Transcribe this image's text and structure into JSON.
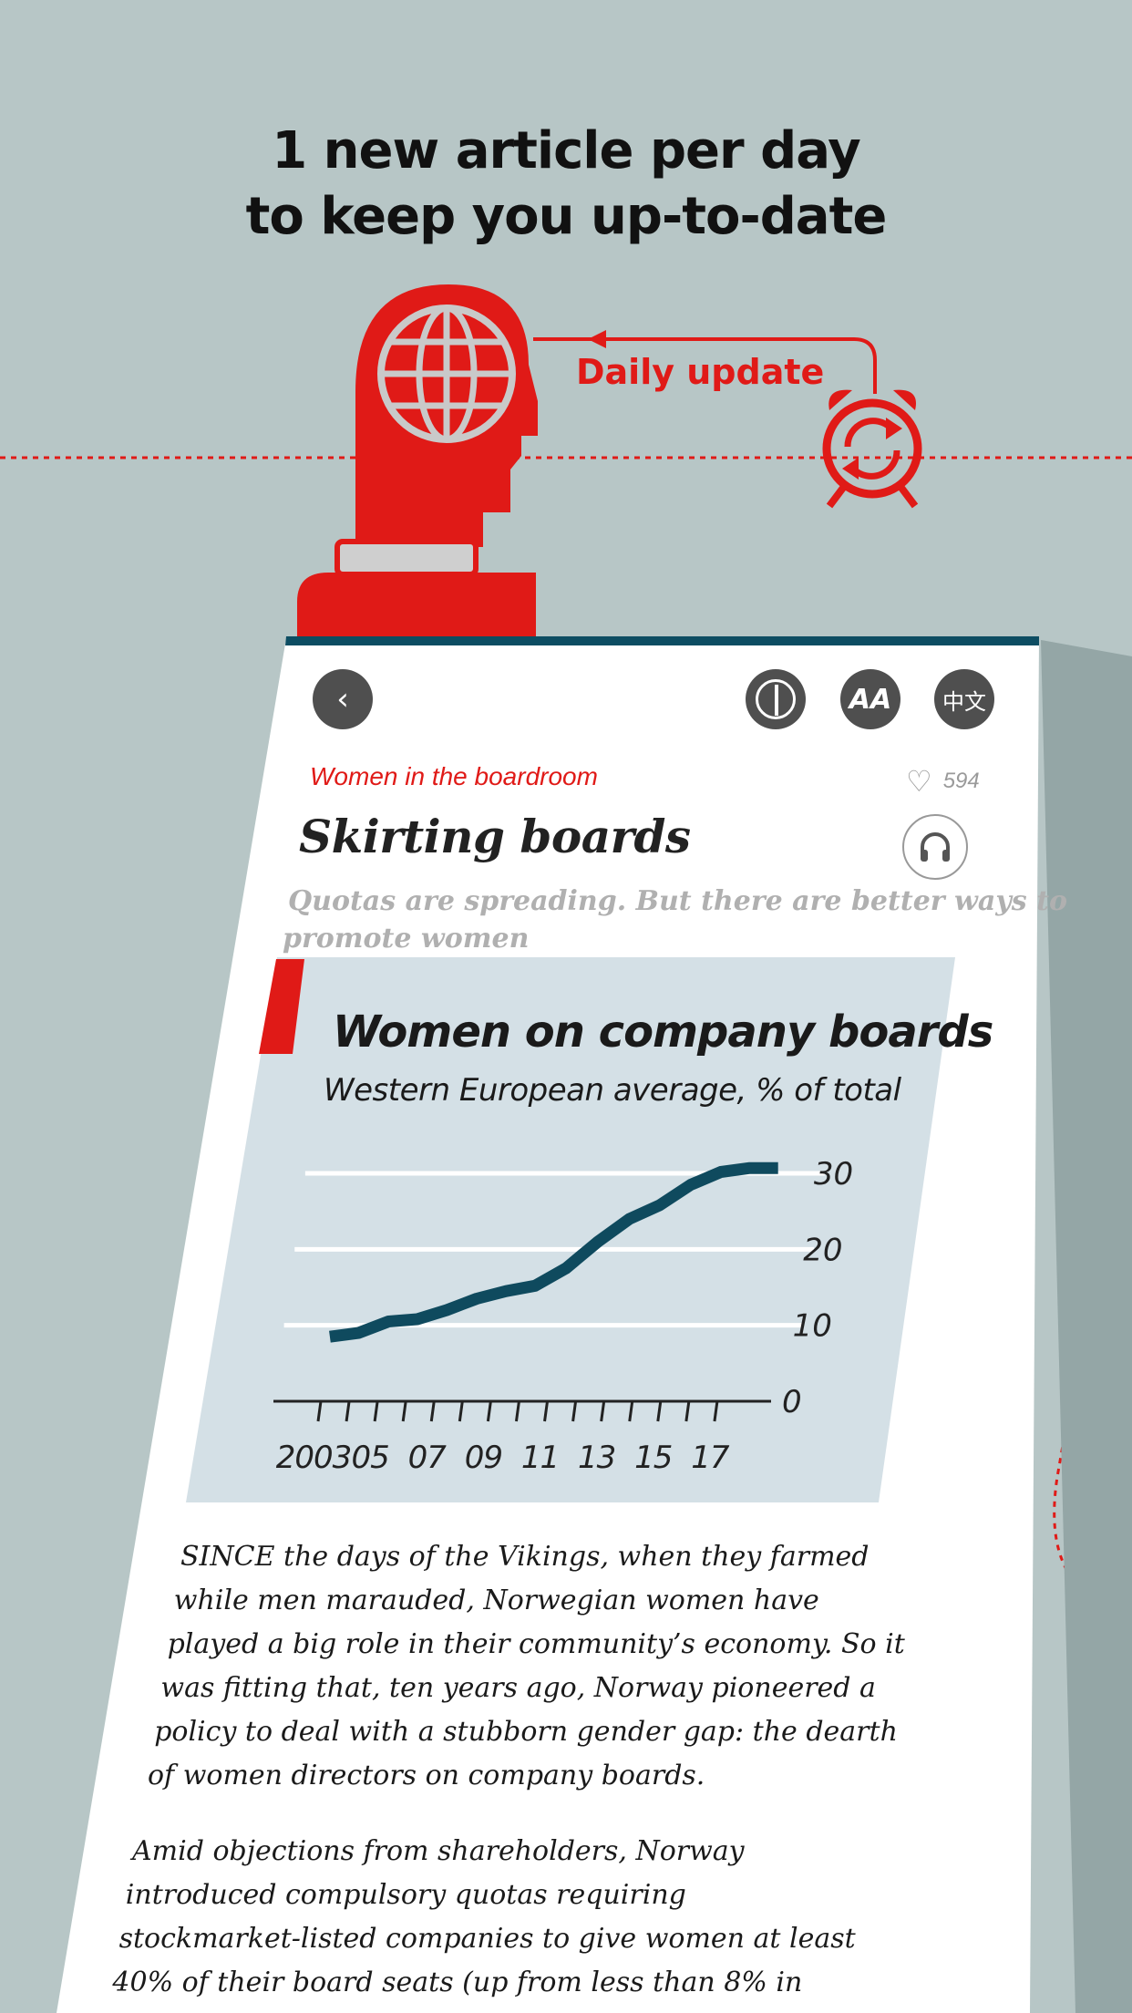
{
  "promo": {
    "headline_line1": "1 new article per day",
    "headline_line2": "to keep you up-to-date",
    "daily_update_label": "Daily update"
  },
  "colors": {
    "background": "#b7c6c6",
    "accent_red": "#e01a17",
    "chart_bg": "#d4e0e6",
    "chart_line": "#0f4a5e",
    "top_bar": "#0d4d62"
  },
  "toolbar": {
    "back_icon": "chevron-left-icon",
    "theme_icon": "contrast-icon",
    "font_label": "AA",
    "language_label": "中文"
  },
  "article": {
    "rubric": "Women in the boardroom",
    "likes": "594",
    "title": "Skirting boards",
    "subtitle_line1": "Quotas are spreading. But there are better ways to",
    "subtitle_line2": "promote women",
    "paragraph1": [
      "SINCE the days of the Vikings, when they farmed",
      "while men marauded, Norwegian women have",
      "played a big role in their community’s economy. So it",
      "was fitting that, ten years ago, Norway pioneered a",
      "policy to deal with a stubborn gender gap: the dearth",
      "of women directors on company boards."
    ],
    "paragraph2": [
      "Amid objections from shareholders, Norway",
      "introduced compulsory quotas requiring",
      "stockmarket-listed companies to give women at least",
      "40% of their board seats (up from less than 8% in"
    ]
  },
  "chart_data": {
    "type": "line",
    "title": "Women on company boards",
    "subtitle": "Western European average, % of total",
    "x": [
      2003,
      2004,
      2005,
      2006,
      2007,
      2008,
      2009,
      2010,
      2011,
      2012,
      2013,
      2014,
      2015,
      2016,
      2017,
      2018
    ],
    "series": [
      {
        "values": [
          8.5,
          9,
          10.5,
          10.8,
          12,
          13.5,
          14.5,
          15.2,
          17.5,
          21,
          24,
          25.8,
          28.5,
          30.5,
          32,
          32
        ]
      }
    ],
    "x_tick_labels": [
      "2003",
      "05",
      "07",
      "09",
      "11",
      "13",
      "15",
      "17"
    ],
    "y_ticks": [
      0,
      10,
      20,
      30
    ],
    "ylim": [
      0,
      30
    ],
    "grid": true
  }
}
